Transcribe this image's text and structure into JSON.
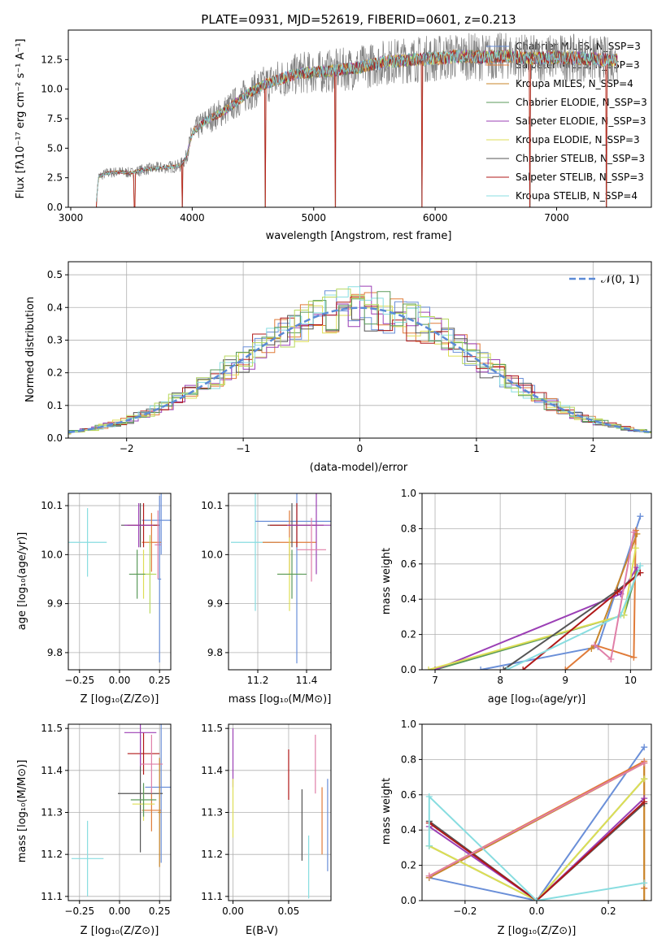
{
  "figure_title": "PLATE=0931, MJD=52619, FIBERID=0601, z=0.213",
  "colors": {
    "Chabrier MILES": "#6a8fd8",
    "Salpeter MILES": "#e07b39",
    "Kroupa MILES": "#c8862a",
    "Chabrier ELODIE": "#5a9a5a",
    "Salpeter ELODIE": "#9b3fb5",
    "Kroupa ELODIE": "#dede55",
    "Chabrier STELIB": "#555555",
    "Salpeter STELIB": "#b01818",
    "Kroupa STELIB": "#88dde0",
    "extra_pink": "#e07fa8",
    "extra_lime": "#b8d860",
    "data_gray": "#808080",
    "normal_curve": "#5b8ad6"
  },
  "chart_data": [
    {
      "id": "spectrum",
      "type": "line",
      "title": "PLATE=0931, MJD=52619, FIBERID=0601, z=0.213",
      "xlabel": "wavelength [Angstrom, rest frame]",
      "ylabel": "Flux [fλ10⁻¹⁷ erg cm⁻² s⁻¹ A⁻¹]",
      "xlim": [
        2980,
        7780
      ],
      "ylim": [
        0,
        15
      ],
      "xticks": [
        "3000",
        "4000",
        "5000",
        "6000",
        "7000"
      ],
      "yticks": [
        "0.0",
        "2.5",
        "5.0",
        "7.5",
        "10.0",
        "12.5"
      ],
      "legend_position": "top-right",
      "legend": [
        "Chabrier MILES, N_SSP=3",
        "Salpeter MILES, N_SSP=3",
        "Kroupa MILES, N_SSP=4",
        "Chabrier ELODIE, N_SSP=3",
        "Salpeter ELODIE, N_SSP=3",
        "Kroupa ELODIE, N_SSP=3",
        "Chabrier STELIB, N_SSP=3",
        "Salpeter STELIB, N_SSP=3",
        "Kroupa STELIB, N_SSP=4"
      ],
      "continuum": {
        "x": [
          3210,
          3230,
          3300,
          3400,
          3500,
          3600,
          3700,
          3800,
          3900,
          3950,
          4000,
          4100,
          4200,
          4300,
          4400,
          4500,
          4600,
          4700,
          4800,
          4900,
          5000,
          5200,
          5400,
          5600,
          5800,
          6000,
          6200,
          6400,
          6600,
          6800,
          7000,
          7200,
          7400,
          7500
        ],
        "y": [
          0.5,
          2.6,
          2.9,
          3.0,
          2.9,
          3.2,
          3.3,
          3.4,
          3.5,
          4.2,
          6.3,
          7.2,
          7.8,
          8.4,
          9.2,
          9.9,
          10.4,
          10.8,
          11.1,
          11.4,
          11.4,
          11.6,
          11.9,
          12.3,
          12.5,
          12.6,
          12.8,
          12.7,
          12.8,
          12.6,
          12.7,
          12.6,
          12.5,
          12.4
        ]
      },
      "dips": [
        [
          3210,
          0.0
        ],
        [
          3525,
          0.0
        ],
        [
          3920,
          0.0
        ],
        [
          4600,
          0.0
        ],
        [
          5180,
          0.0
        ],
        [
          5890,
          0.0
        ],
        [
          6780,
          0.0
        ],
        [
          7410,
          0.0
        ]
      ]
    },
    {
      "id": "residuals",
      "type": "line",
      "xlabel": "(data-model)/error",
      "ylabel": "Normed distribution",
      "xlim": [
        -2.5,
        2.5
      ],
      "ylim": [
        0,
        0.54
      ],
      "xticks": [
        "−2",
        "−1",
        "0",
        "1",
        "2"
      ],
      "yticks": [
        "0.0",
        "0.1",
        "0.2",
        "0.3",
        "0.4",
        "0.5"
      ],
      "legend_label": "𝒩(0, 1)",
      "legend_position": "top-right",
      "grid": true
    },
    {
      "id": "age_vs_Z",
      "type": "scatter",
      "xlabel": "Z [log₁₀(Z/Z⊙)]",
      "ylabel": "age  [log₁₀(age/yr)]",
      "xlim": [
        -0.32,
        0.32
      ],
      "ylim": [
        9.765,
        10.125
      ],
      "xticks": [
        "−0.25",
        "0.00",
        "0.25"
      ],
      "yticks": [
        "9.8",
        "9.9",
        "10.0",
        "10.1"
      ],
      "grid": true,
      "points": [
        {
          "c": "Kroupa STELIB",
          "x": -0.2,
          "xe": 0.12,
          "y": 10.025,
          "ye": 0.07
        },
        {
          "c": "Chabrier MILES",
          "x": 0.26,
          "xe": 0.12,
          "y": 10.07,
          "ye": 0.07
        },
        {
          "c": "Salpeter MILES",
          "x": 0.2,
          "xe": 0.06,
          "y": 10.025,
          "ye": 0.06
        },
        {
          "c": "Chabrier STELIB",
          "x": 0.13,
          "xe": 0.12,
          "y": 10.06,
          "ye": 0.045
        },
        {
          "c": "Salpeter STELIB",
          "x": 0.15,
          "xe": 0.1,
          "y": 10.06,
          "ye": 0.045
        },
        {
          "c": "Salpeter ELODIE",
          "x": 0.12,
          "xe": 0.09,
          "y": 10.06,
          "ye": 0.045
        },
        {
          "c": "Kroupa ELODIE",
          "x": 0.15,
          "xe": 0.06,
          "y": 9.96,
          "ye": 0.05
        },
        {
          "c": "extra_lime",
          "x": 0.19,
          "xe": 0.04,
          "y": 9.96,
          "ye": 0.08
        },
        {
          "c": "Chabrier ELODIE",
          "x": 0.11,
          "xe": 0.05,
          "y": 9.96,
          "ye": 0.05
        },
        {
          "c": "extra_pink",
          "x": 0.24,
          "xe": 0.02,
          "y": 10.02,
          "ye": 0.07
        },
        {
          "c": "Chabrier MILES",
          "x": 0.25,
          "xe": 0.01,
          "y": 9.95,
          "ye": 0.17
        }
      ]
    },
    {
      "id": "age_vs_mass",
      "type": "scatter",
      "xlabel": "mass [log₁₀(M/M⊙)]",
      "ylabel": "",
      "xlim": [
        11.08,
        11.5
      ],
      "ylim": [
        9.765,
        10.125
      ],
      "xticks": [
        "11.2",
        "11.4"
      ],
      "yticks": [
        "9.8",
        "9.9",
        "10.0",
        "10.1"
      ],
      "grid": true,
      "points": [
        {
          "c": "Kroupa STELIB",
          "x": 11.19,
          "xe": 0.1,
          "y": 10.025,
          "ye": 0.14
        },
        {
          "c": "Chabrier MILES",
          "x": 11.36,
          "xe": 0.17,
          "y": 10.068,
          "ye": 0.29
        },
        {
          "c": "Salpeter MILES",
          "x": 11.33,
          "xe": 0.11,
          "y": 10.025,
          "ye": 0.065
        },
        {
          "c": "Chabrier STELIB",
          "x": 11.34,
          "xe": 0.1,
          "y": 10.06,
          "ye": 0.045
        },
        {
          "c": "Salpeter STELIB",
          "x": 11.36,
          "xe": 0.11,
          "y": 10.06,
          "ye": 0.045
        },
        {
          "c": "Salpeter ELODIE",
          "x": 11.44,
          "xe": 0.12,
          "y": 10.06,
          "ye": 0.1
        },
        {
          "c": "Kroupa ELODIE",
          "x": 11.33,
          "xe": 0.05,
          "y": 9.96,
          "ye": 0.075
        },
        {
          "c": "Chabrier ELODIE",
          "x": 11.34,
          "xe": 0.06,
          "y": 9.96,
          "ye": 0.05
        },
        {
          "c": "extra_pink",
          "x": 11.42,
          "xe": 0.06,
          "y": 10.01,
          "ye": 0.065
        }
      ]
    },
    {
      "id": "massweight_vs_age",
      "type": "line",
      "xlabel": "age  [log₁₀(age/yr)]",
      "ylabel": "mass weight",
      "xlim": [
        6.8,
        10.32
      ],
      "ylim": [
        0,
        1.0
      ],
      "xticks": [
        "7",
        "8",
        "9",
        "10"
      ],
      "yticks": [
        "0.0",
        "0.2",
        "0.4",
        "0.6",
        "0.8",
        "1.0"
      ],
      "grid": true,
      "series": [
        {
          "c": "Chabrier MILES",
          "x": [
            7.7,
            9.5,
            10.15
          ],
          "y": [
            0.0,
            0.13,
            0.87
          ]
        },
        {
          "c": "Salpeter MILES",
          "x": [
            9.0,
            9.45,
            10.05,
            10.08
          ],
          "y": [
            0.0,
            0.14,
            0.07,
            0.79
          ]
        },
        {
          "c": "Kroupa MILES",
          "x": [
            9.4,
            9.45,
            10.1
          ],
          "y": [
            0.12,
            0.14,
            0.77
          ]
        },
        {
          "c": "Chabrier ELODIE",
          "x": [
            7.0,
            9.9,
            10.1
          ],
          "y": [
            0.0,
            0.31,
            0.56
          ]
        },
        {
          "c": "Salpeter ELODIE",
          "x": [
            7.0,
            9.85,
            10.1
          ],
          "y": [
            0.0,
            0.43,
            0.58
          ]
        },
        {
          "c": "Kroupa ELODIE",
          "x": [
            6.9,
            9.9,
            10.08
          ],
          "y": [
            0.0,
            0.31,
            0.69
          ]
        },
        {
          "c": "Chabrier STELIB",
          "x": [
            8.05,
            9.8,
            10.15
          ],
          "y": [
            0.0,
            0.45,
            0.55
          ]
        },
        {
          "c": "Salpeter STELIB",
          "x": [
            8.35,
            9.8,
            10.15
          ],
          "y": [
            0.0,
            0.44,
            0.55
          ]
        },
        {
          "c": "Kroupa STELIB",
          "x": [
            8.1,
            9.85,
            10.15
          ],
          "y": [
            0.0,
            0.31,
            0.59
          ]
        },
        {
          "c": "extra_pink",
          "x": [
            9.45,
            9.7,
            10.05
          ],
          "y": [
            0.14,
            0.06,
            0.78
          ]
        }
      ]
    },
    {
      "id": "mass_vs_Z",
      "type": "scatter",
      "xlabel": "Z [log₁₀(Z/Z⊙)]",
      "ylabel": "mass [log₁₀(M/M⊙)]",
      "xlim": [
        -0.32,
        0.32
      ],
      "ylim": [
        11.09,
        11.51
      ],
      "xticks": [
        "−0.25",
        "0.00",
        "0.25"
      ],
      "yticks": [
        "11.1",
        "11.2",
        "11.3",
        "11.4",
        "11.5"
      ],
      "grid": true,
      "points": [
        {
          "c": "Kroupa STELIB",
          "x": -0.2,
          "xe": 0.1,
          "y": 11.19,
          "ye": 0.09
        },
        {
          "c": "Chabrier MILES",
          "x": 0.26,
          "xe": 0.1,
          "y": 11.36,
          "ye": 0.18
        },
        {
          "c": "Salpeter MILES",
          "x": 0.2,
          "xe": 0.06,
          "y": 11.305,
          "ye": 0.05
        },
        {
          "c": "Chabrier STELIB",
          "x": 0.13,
          "xe": 0.14,
          "y": 11.345,
          "ye": 0.14
        },
        {
          "c": "Salpeter STELIB",
          "x": 0.15,
          "xe": 0.1,
          "y": 11.44,
          "ye": 0.05
        },
        {
          "c": "Salpeter ELODIE",
          "x": 0.13,
          "xe": 0.1,
          "y": 11.49,
          "ye": 0.08
        },
        {
          "c": "Kroupa ELODIE",
          "x": 0.15,
          "xe": 0.07,
          "y": 11.32,
          "ye": 0.04
        },
        {
          "c": "Chabrier ELODIE",
          "x": 0.15,
          "xe": 0.08,
          "y": 11.33,
          "ye": 0.04
        },
        {
          "c": "extra_pink",
          "x": 0.2,
          "xe": 0.07,
          "y": 11.415,
          "ye": 0.07
        },
        {
          "c": "Kroupa MILES",
          "x": 0.25,
          "xe": 0.01,
          "y": 11.3,
          "ye": 0.13
        }
      ]
    },
    {
      "id": "mass_vs_EBV",
      "type": "scatter",
      "xlabel": "E(B-V)",
      "ylabel": "",
      "xlim": [
        -0.004,
        0.088
      ],
      "ylim": [
        11.09,
        11.51
      ],
      "xticks": [
        "0.00",
        "0.05"
      ],
      "yticks": [
        "11.1",
        "11.2",
        "11.3",
        "11.4",
        "11.5"
      ],
      "grid": true,
      "points": [
        {
          "c": "Salpeter ELODIE",
          "x": 0.0,
          "y": 11.43,
          "ye": 0.07
        },
        {
          "c": "Kroupa ELODIE",
          "x": 0.0,
          "y": 11.31,
          "ye": 0.07
        },
        {
          "c": "Salpeter STELIB",
          "x": 0.05,
          "y": 11.39,
          "ye": 0.06
        },
        {
          "c": "Chabrier STELIB",
          "x": 0.062,
          "y": 11.27,
          "ye": 0.085
        },
        {
          "c": "Kroupa STELIB",
          "x": 0.068,
          "y": 11.17,
          "ye": 0.075
        },
        {
          "c": "extra_pink",
          "x": 0.074,
          "y": 11.415,
          "ye": 0.07
        },
        {
          "c": "Salpeter MILES",
          "x": 0.08,
          "y": 11.28,
          "ye": 0.08
        },
        {
          "c": "Chabrier MILES",
          "x": 0.085,
          "y": 11.27,
          "ye": 0.11
        }
      ]
    },
    {
      "id": "massweight_vs_Z",
      "type": "line",
      "xlabel": "Z [log₁₀(Z/Z⊙)]",
      "ylabel": "mass weight",
      "xlim": [
        -0.32,
        0.32
      ],
      "ylim": [
        0,
        1.0
      ],
      "xticks": [
        "−0.2",
        "0.0",
        "0.2"
      ],
      "yticks": [
        "0.0",
        "0.2",
        "0.4",
        "0.6",
        "0.8",
        "1.0"
      ],
      "grid": true,
      "series": [
        {
          "c": "Chabrier MILES",
          "x": [
            -0.3,
            0.0,
            0.3
          ],
          "y": [
            0.13,
            0.0,
            0.87
          ]
        },
        {
          "c": "Salpeter MILES",
          "x": [
            -0.3,
            0.3,
            0.3,
            0.3
          ],
          "y": [
            0.14,
            0.79,
            0.07,
            0.0
          ]
        },
        {
          "c": "Kroupa MILES",
          "x": [
            -0.3,
            0.3,
            0.3
          ],
          "y": [
            0.13,
            0.78,
            0.0
          ]
        },
        {
          "c": "Chabrier ELODIE",
          "x": [
            -0.3,
            0.0,
            0.3
          ],
          "y": [
            0.31,
            0.0,
            0.69
          ]
        },
        {
          "c": "Salpeter ELODIE",
          "x": [
            -0.3,
            0.0,
            0.3
          ],
          "y": [
            0.42,
            0.0,
            0.58
          ]
        },
        {
          "c": "Kroupa ELODIE",
          "x": [
            -0.3,
            0.0,
            0.3
          ],
          "y": [
            0.31,
            0.0,
            0.69
          ]
        },
        {
          "c": "Chabrier STELIB",
          "x": [
            -0.3,
            0.0,
            0.3
          ],
          "y": [
            0.45,
            0.0,
            0.55
          ]
        },
        {
          "c": "Salpeter STELIB",
          "x": [
            -0.3,
            0.0,
            0.3
          ],
          "y": [
            0.44,
            0.0,
            0.56
          ]
        },
        {
          "c": "Kroupa STELIB",
          "x": [
            -0.3,
            -0.3,
            0.0,
            0.3
          ],
          "y": [
            0.31,
            0.59,
            0.0,
            0.1
          ]
        },
        {
          "c": "extra_pink",
          "x": [
            -0.3,
            0.3
          ],
          "y": [
            0.14,
            0.78
          ]
        }
      ]
    }
  ]
}
